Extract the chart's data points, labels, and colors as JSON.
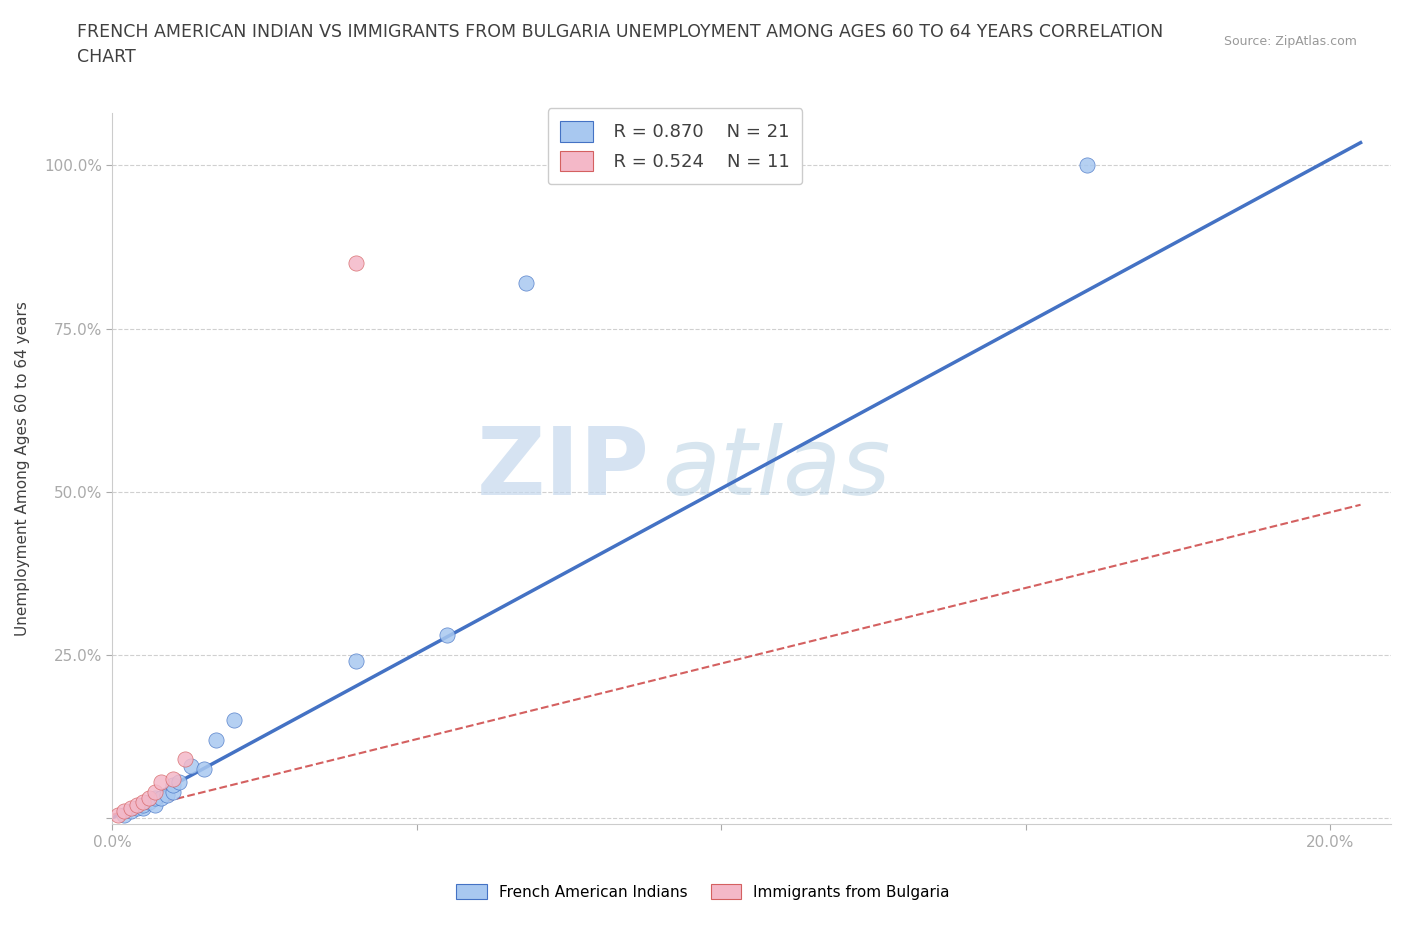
{
  "title": "FRENCH AMERICAN INDIAN VS IMMIGRANTS FROM BULGARIA UNEMPLOYMENT AMONG AGES 60 TO 64 YEARS CORRELATION\nCHART",
  "source_text": "Source: ZipAtlas.com",
  "ylabel": "Unemployment Among Ages 60 to 64 years",
  "xlim": [
    0.0,
    0.21
  ],
  "ylim": [
    -0.01,
    1.08
  ],
  "x_ticks": [
    0.0,
    0.05,
    0.1,
    0.15,
    0.2
  ],
  "x_tick_labels": [
    "0.0%",
    "",
    "",
    "",
    "20.0%"
  ],
  "y_ticks": [
    0.0,
    0.25,
    0.5,
    0.75,
    1.0
  ],
  "y_tick_labels": [
    "",
    "25.0%",
    "50.0%",
    "75.0%",
    "100.0%"
  ],
  "blue_scatter_x": [
    0.002,
    0.003,
    0.004,
    0.005,
    0.005,
    0.006,
    0.007,
    0.007,
    0.008,
    0.009,
    0.01,
    0.01,
    0.011,
    0.013,
    0.015,
    0.017,
    0.02,
    0.04,
    0.055,
    0.068,
    0.16
  ],
  "blue_scatter_y": [
    0.005,
    0.01,
    0.015,
    0.015,
    0.02,
    0.025,
    0.02,
    0.03,
    0.03,
    0.035,
    0.04,
    0.05,
    0.055,
    0.08,
    0.075,
    0.12,
    0.15,
    0.24,
    0.28,
    0.82,
    1.0
  ],
  "pink_scatter_x": [
    0.001,
    0.002,
    0.003,
    0.004,
    0.005,
    0.006,
    0.007,
    0.008,
    0.01,
    0.012,
    0.04
  ],
  "pink_scatter_y": [
    0.005,
    0.01,
    0.015,
    0.02,
    0.025,
    0.03,
    0.04,
    0.055,
    0.06,
    0.09,
    0.85
  ],
  "blue_line_x": [
    0.0,
    0.205
  ],
  "blue_line_y": [
    0.0,
    1.035
  ],
  "pink_line_x": [
    0.0,
    0.205
  ],
  "pink_line_y": [
    0.005,
    0.48
  ],
  "blue_color": "#a8c8f0",
  "blue_line_color": "#4472c4",
  "pink_color": "#f4b8c8",
  "pink_line_color": "#d46060",
  "scatter_size": 120,
  "legend_r_blue": "R = 0.870",
  "legend_n_blue": "N = 21",
  "legend_r_pink": "R = 0.524",
  "legend_n_pink": "N = 11",
  "legend_label_blue": "French American Indians",
  "legend_label_pink": "Immigrants from Bulgaria",
  "watermark_zip": "ZIP",
  "watermark_atlas": "atlas",
  "background_color": "#ffffff",
  "grid_color": "#d0d0d0",
  "text_color_dark": "#404040",
  "text_color_blue": "#4472c4"
}
